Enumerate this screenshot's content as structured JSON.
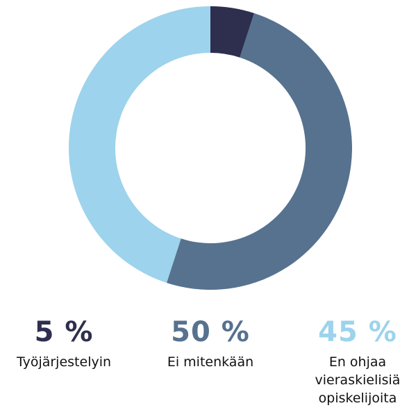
{
  "chart_data": {
    "type": "donut",
    "categories": [
      "Työjärjestelyin",
      "Ei mitenkään",
      "En ohjaa vieraskielisiä opiskelijoita"
    ],
    "values": [
      5,
      50,
      45
    ],
    "value_labels": [
      "5 %",
      "50 %",
      "45 %"
    ],
    "colors": [
      "#2e2e4f",
      "#56728f",
      "#9dd3ec"
    ]
  }
}
